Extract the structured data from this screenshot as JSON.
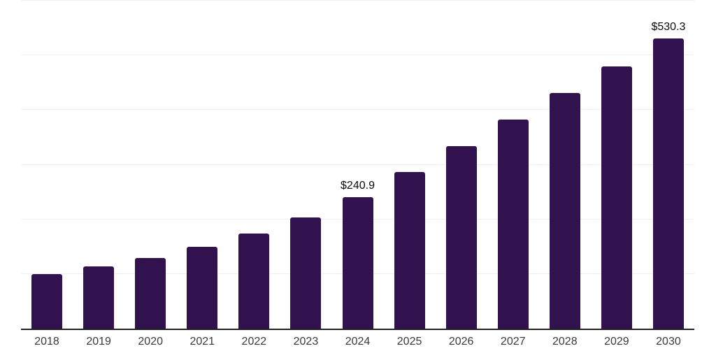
{
  "chart": {
    "background_color": "#ffffff",
    "bar_color": "#31124E",
    "grid_color": "#f0f0f0",
    "axis_line_color": "#212121",
    "tick_label_color": "#3a3a3a",
    "data_label_color": "#0a0a0a"
  },
  "chart_data": {
    "type": "bar",
    "title": "",
    "xlabel": "",
    "ylabel": "",
    "categories": [
      "2018",
      "2019",
      "2020",
      "2021",
      "2022",
      "2023",
      "2024",
      "2025",
      "2026",
      "2027",
      "2028",
      "2029",
      "2030"
    ],
    "values": [
      100.0,
      114.3,
      129.4,
      149.8,
      174.1,
      203.6,
      240.9,
      286.8,
      334.2,
      382.8,
      431.5,
      480.2,
      530.3
    ],
    "data_labels": [
      {
        "category": "2024",
        "text": "$240.9"
      },
      {
        "category": "2030",
        "text": "$530.3"
      }
    ],
    "ylim": [
      0,
      600
    ],
    "gridlines": [
      100,
      200,
      300,
      400,
      500,
      600
    ],
    "grid": "horizontal-only",
    "legend": "none",
    "y_axis_ticks_visible": false
  }
}
